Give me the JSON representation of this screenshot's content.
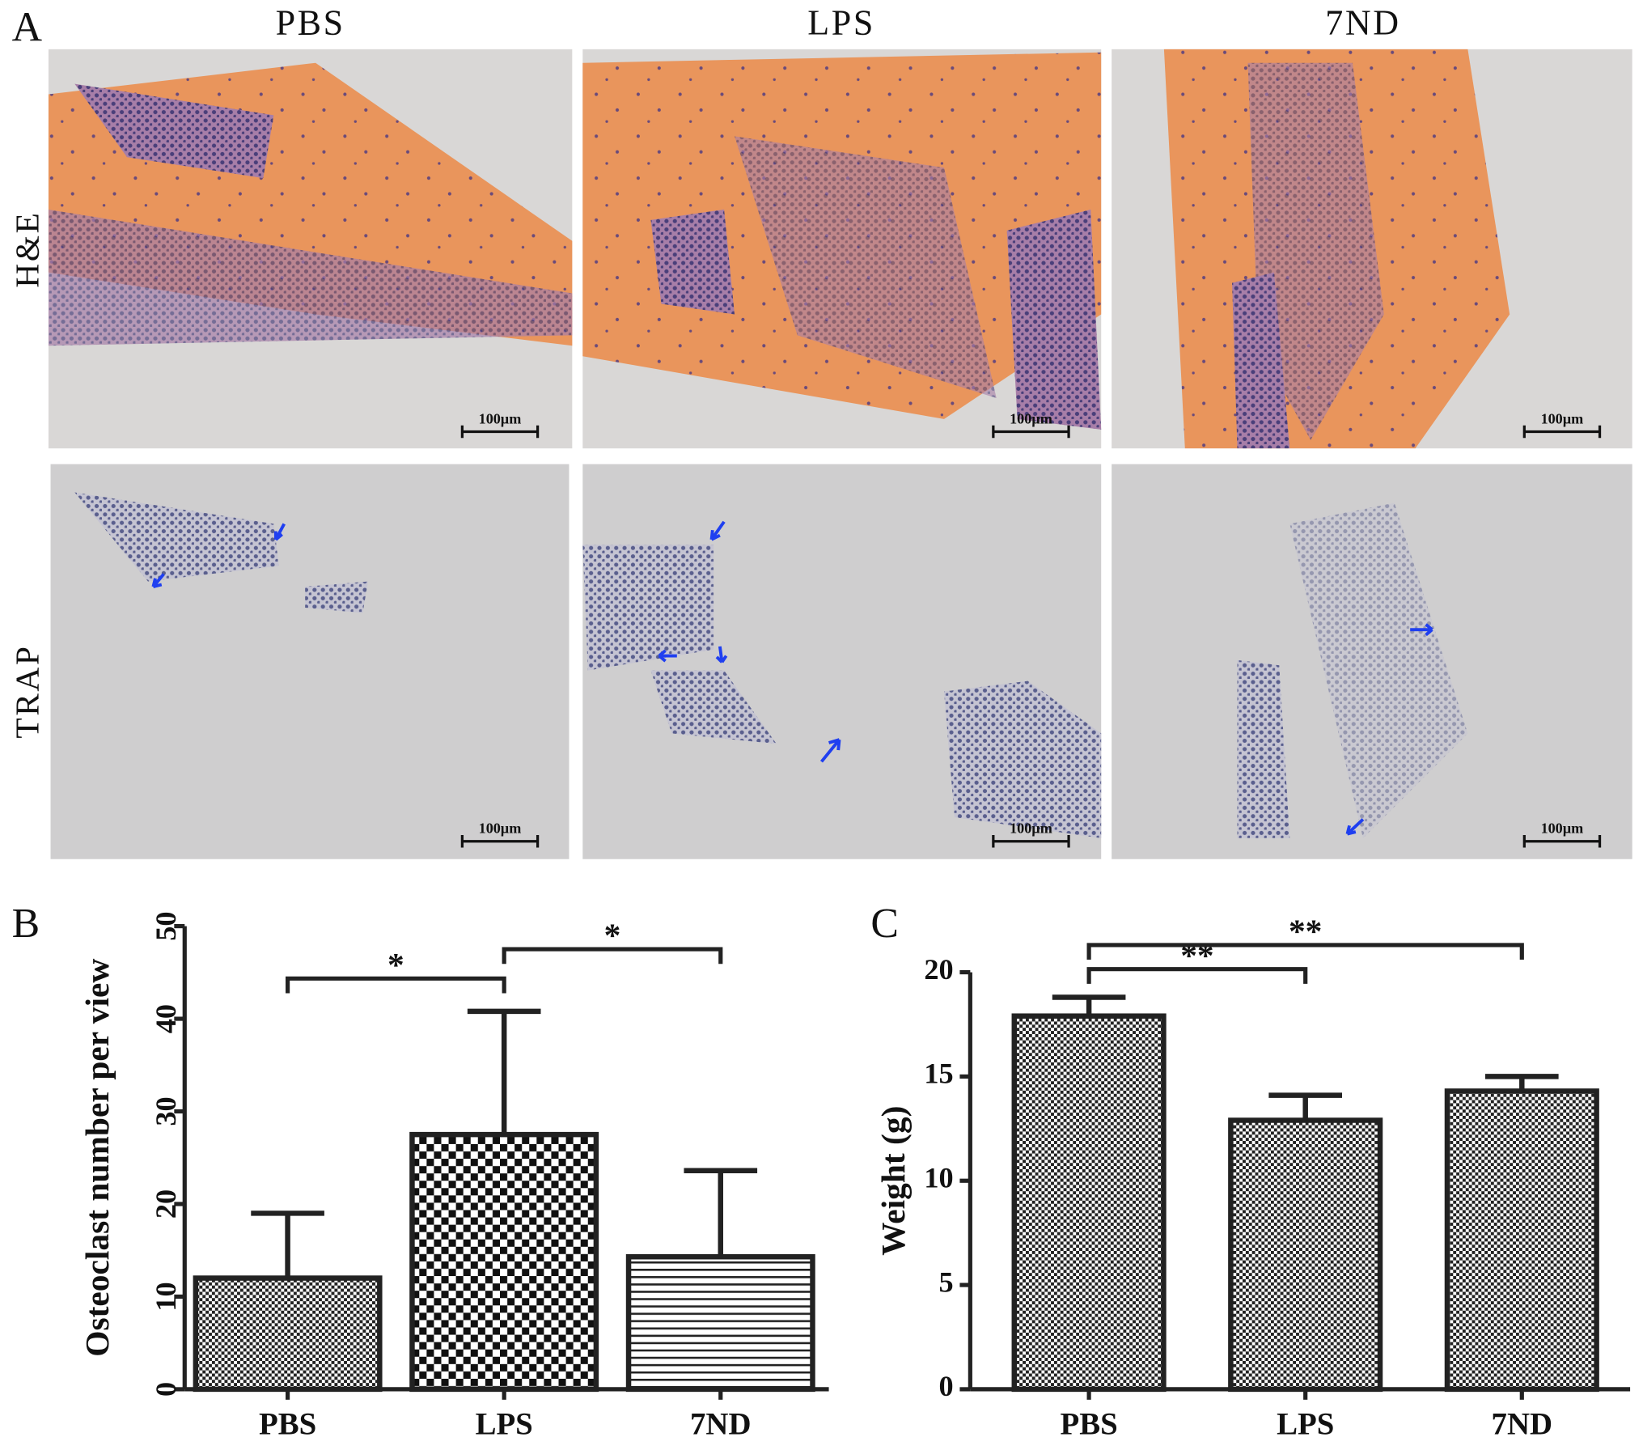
{
  "figure": {
    "panel_labels": [
      "A",
      "B",
      "C"
    ],
    "columns": [
      "PBS",
      "LPS",
      "7ND"
    ],
    "rows": [
      "H&E",
      "TRAP"
    ],
    "scale_bar": "100µm"
  },
  "chart_data": [
    {
      "type": "bar",
      "categories": [
        "PBS",
        "LPS",
        "7ND"
      ],
      "values": [
        12,
        27.5,
        14.3
      ],
      "errors": [
        7,
        13.3,
        9.3
      ],
      "patterns": [
        "checker-fine",
        "checker",
        "hlines"
      ],
      "ylabel": "Osteoclast number per view",
      "ylim": [
        0,
        50
      ],
      "yticks": [
        0,
        10,
        20,
        30,
        40,
        50
      ],
      "rotated_tick_labels": true,
      "annotations": [
        {
          "text": "*",
          "between": [
            "PBS",
            "LPS"
          ]
        },
        {
          "text": "*",
          "between": [
            "LPS",
            "7ND"
          ]
        }
      ]
    },
    {
      "type": "bar",
      "categories": [
        "PBS",
        "LPS",
        "7ND"
      ],
      "values": [
        17.9,
        12.9,
        14.3
      ],
      "errors": [
        0.9,
        1.2,
        0.7
      ],
      "patterns": [
        "checker-fine",
        "checker-fine",
        "checker-fine"
      ],
      "ylabel": "Weight (g)",
      "ylim": [
        0,
        20
      ],
      "yticks": [
        0,
        5,
        10,
        15,
        20
      ],
      "rotated_tick_labels": false,
      "annotations": [
        {
          "text": "**",
          "between": [
            "PBS",
            "LPS"
          ]
        },
        {
          "text": "**",
          "between": [
            "PBS",
            "7ND"
          ]
        }
      ]
    }
  ]
}
